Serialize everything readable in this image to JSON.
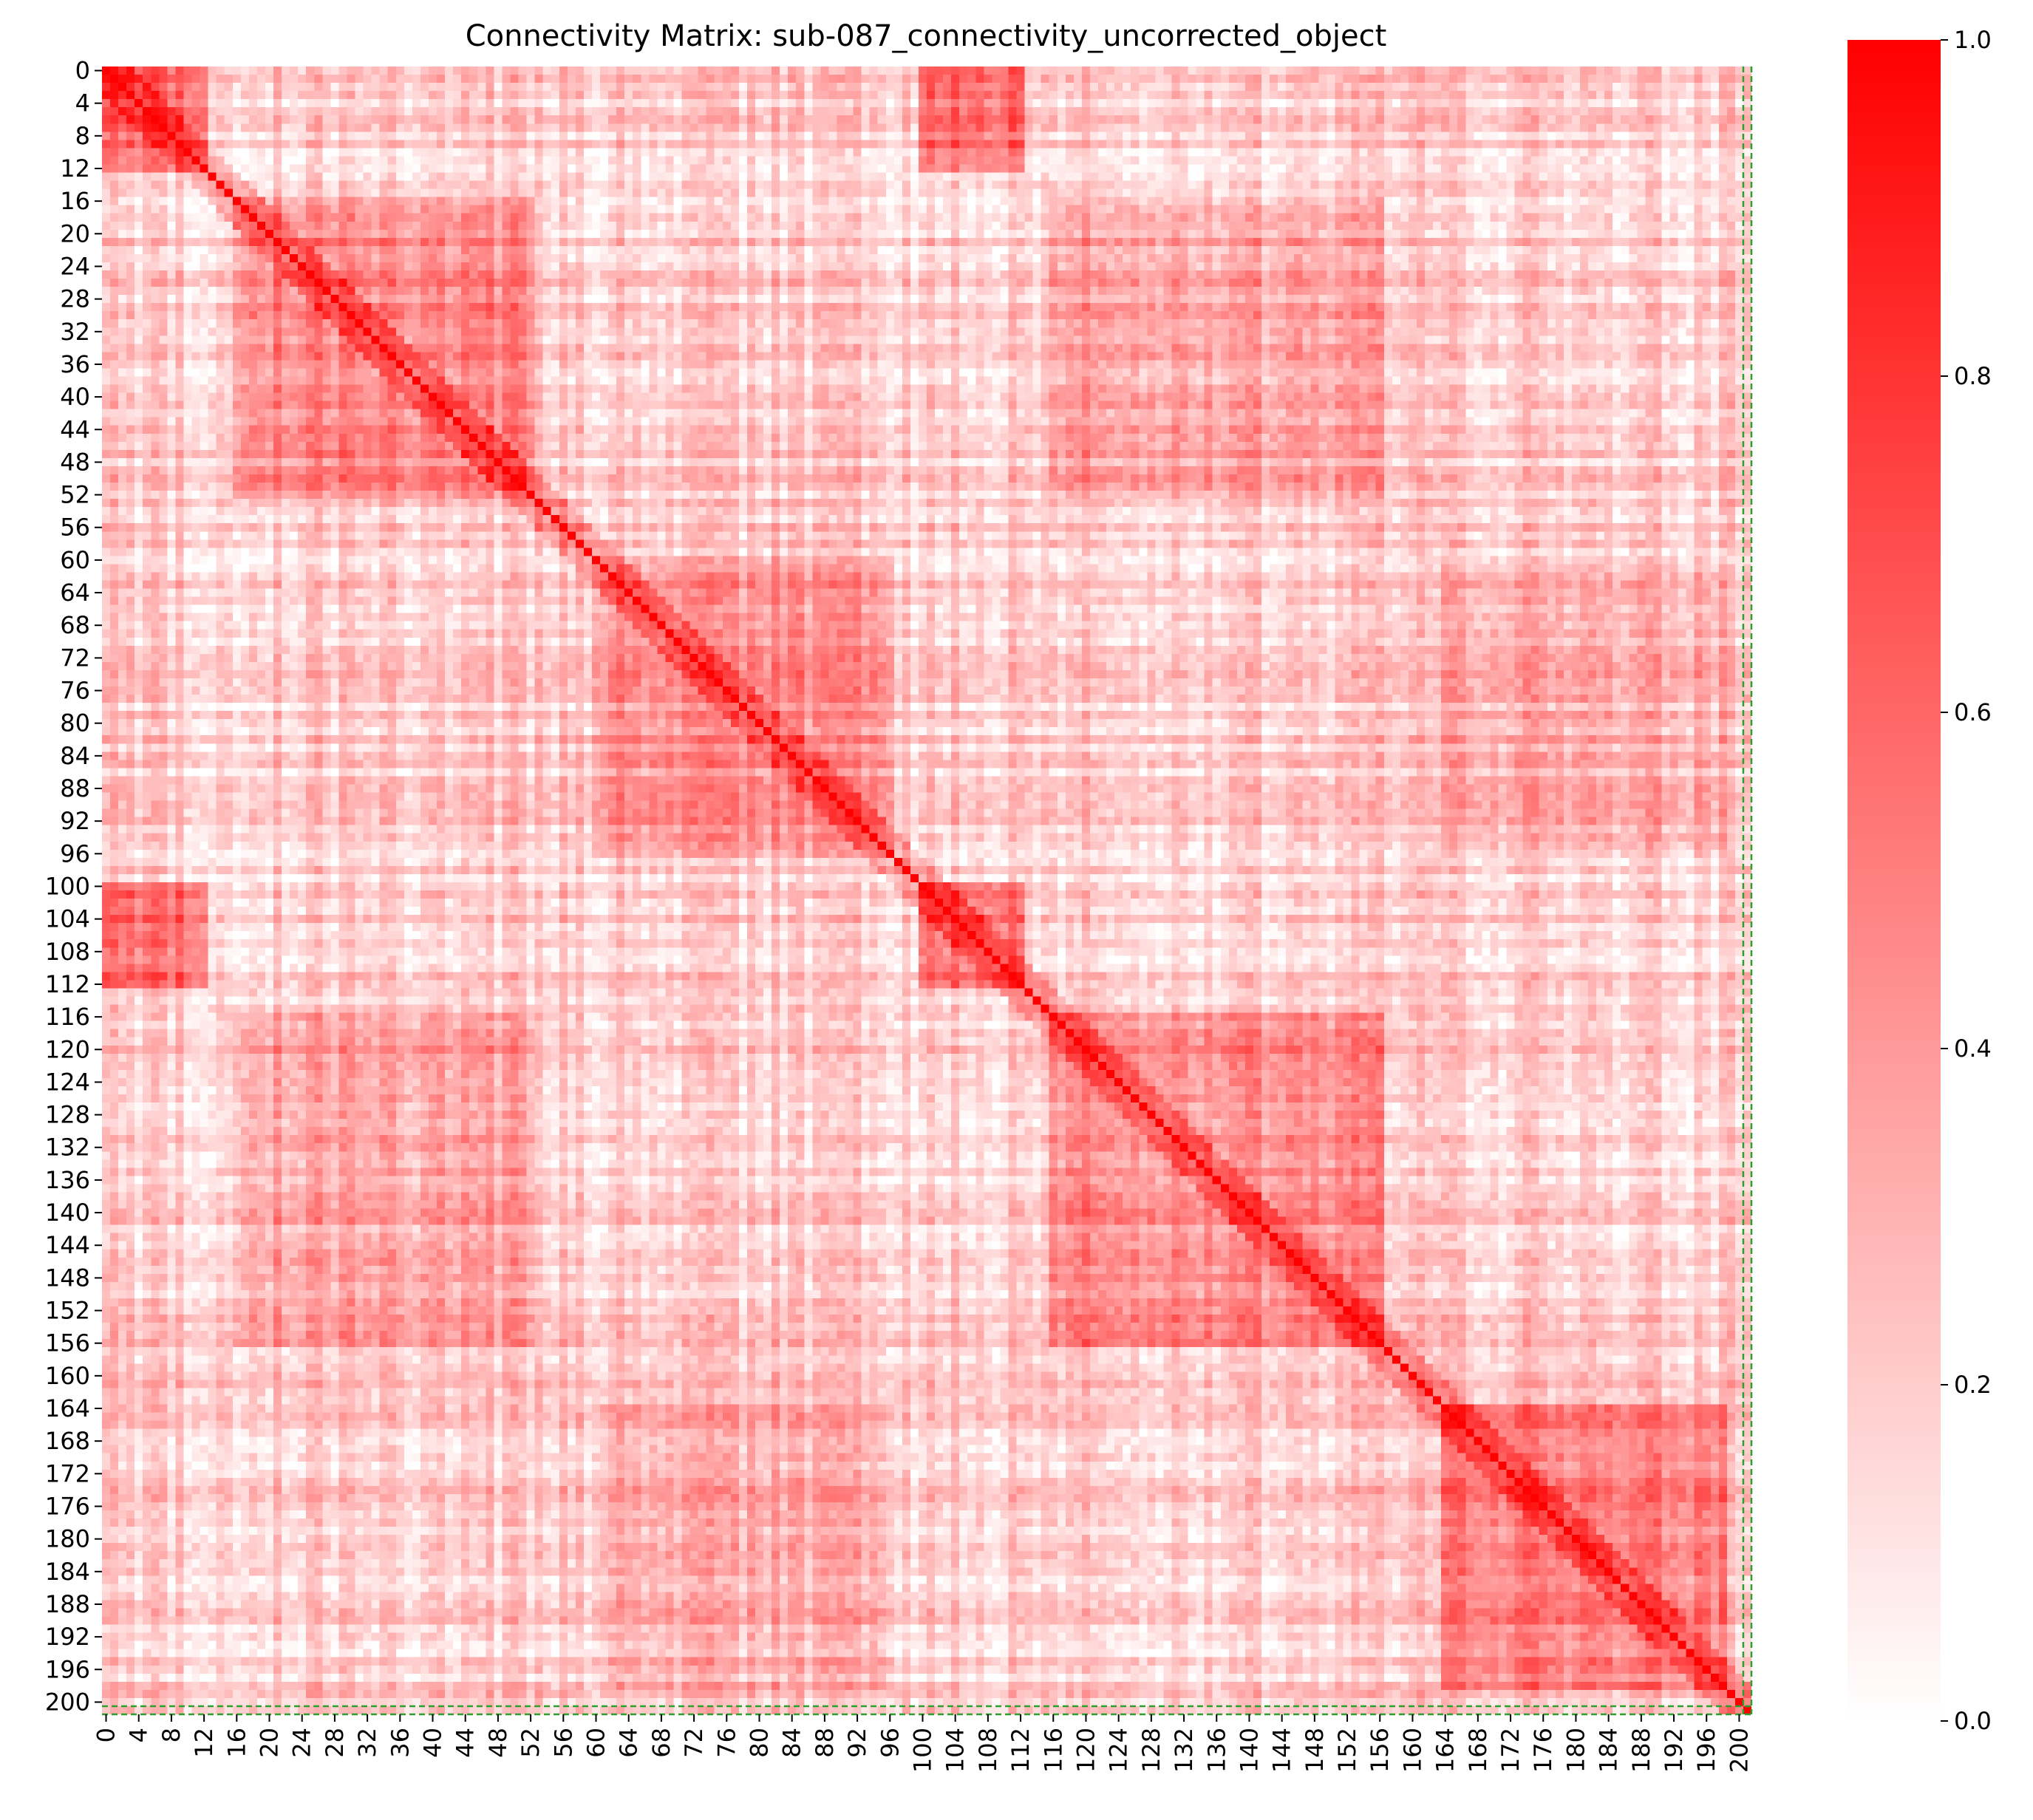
{
  "chart_data": {
    "type": "heatmap",
    "title": "Connectivity Matrix: sub-087_connectivity_uncorrected_object",
    "xlabel": "",
    "ylabel": "",
    "n": 202,
    "tick_labels": [
      "0",
      "4",
      "8",
      "12",
      "16",
      "20",
      "24",
      "28",
      "32",
      "36",
      "40",
      "44",
      "48",
      "52",
      "56",
      "60",
      "64",
      "68",
      "72",
      "76",
      "80",
      "84",
      "88",
      "92",
      "96",
      "100",
      "104",
      "108",
      "112",
      "116",
      "120",
      "124",
      "128",
      "132",
      "136",
      "140",
      "144",
      "148",
      "152",
      "156",
      "160",
      "164",
      "168",
      "172",
      "176",
      "180",
      "184",
      "188",
      "192",
      "196",
      "200"
    ],
    "tick_step": 4,
    "value_range": [
      0.0,
      1.0
    ],
    "colormap": {
      "low": "#ffffff",
      "high": "#ff0000"
    },
    "colorbar": {
      "ticks": [
        0.0,
        0.2,
        0.4,
        0.6,
        0.8,
        1.0
      ],
      "tick_labels": [
        "0.0",
        "0.2",
        "0.4",
        "0.6",
        "0.8",
        "1.0"
      ]
    },
    "diagonal_value": 1.0,
    "matrix_note_values": {
      "block_0_12_with_100_112": 0.55,
      "block_16_52_within": 0.45,
      "block_60_96_within": 0.4,
      "block_116_156_within": 0.45,
      "block_164_198_within": 0.5,
      "background": 0.18
    },
    "highlight_index": 201,
    "highlight_color": "#2ca02c",
    "grid": false
  }
}
